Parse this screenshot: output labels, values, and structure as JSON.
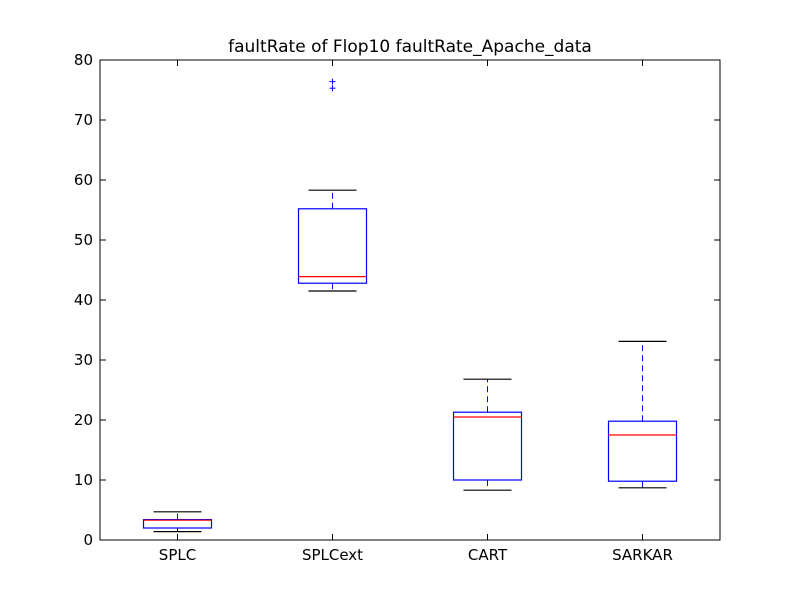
{
  "chart_data": {
    "type": "boxplot",
    "title": "faultRate of Flop10 faultRate_Apache_data",
    "xlabel": "",
    "ylabel": "",
    "ylim": [
      0,
      80
    ],
    "yticks": [
      0,
      10,
      20,
      30,
      40,
      50,
      60,
      70,
      80
    ],
    "grid": false,
    "colors": {
      "box": "#0000ff",
      "median": "#ff0000",
      "cap": "#000000",
      "flier": "#0000ff",
      "axes": "#000000"
    },
    "categories": [
      "SPLC",
      "SPLCext",
      "CART",
      "SARKAR"
    ],
    "boxes": [
      {
        "name": "SPLC",
        "whislo": 1.4,
        "q1": 2.0,
        "med": 3.3,
        "q3": 3.4,
        "whishi": 4.7,
        "fliers": []
      },
      {
        "name": "SPLCext",
        "whislo": 41.5,
        "q1": 42.8,
        "med": 43.9,
        "q3": 55.2,
        "whishi": 58.3,
        "fliers": [
          75.3,
          76.4
        ]
      },
      {
        "name": "CART",
        "whislo": 8.3,
        "q1": 10.0,
        "med": 20.5,
        "q3": 21.3,
        "whishi": 26.8,
        "fliers": []
      },
      {
        "name": "SARKAR",
        "whislo": 8.7,
        "q1": 9.8,
        "med": 17.5,
        "q3": 19.8,
        "whishi": 33.1,
        "fliers": []
      }
    ]
  }
}
